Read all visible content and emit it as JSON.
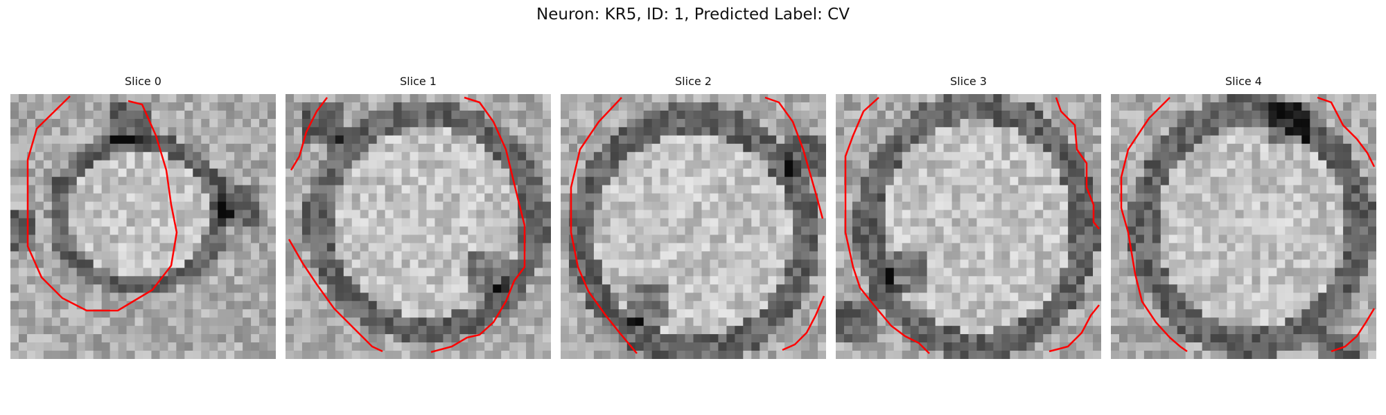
{
  "figure": {
    "title": "Neuron: KR5, ID: 1, Predicted Label: CV"
  },
  "panels": [
    {
      "title": "Slice 0"
    },
    {
      "title": "Slice 1"
    },
    {
      "title": "Slice 2"
    },
    {
      "title": "Slice 3"
    },
    {
      "title": "Slice 4"
    }
  ],
  "colors": {
    "contour": "#ff0000",
    "image_colormap": "gray"
  }
}
